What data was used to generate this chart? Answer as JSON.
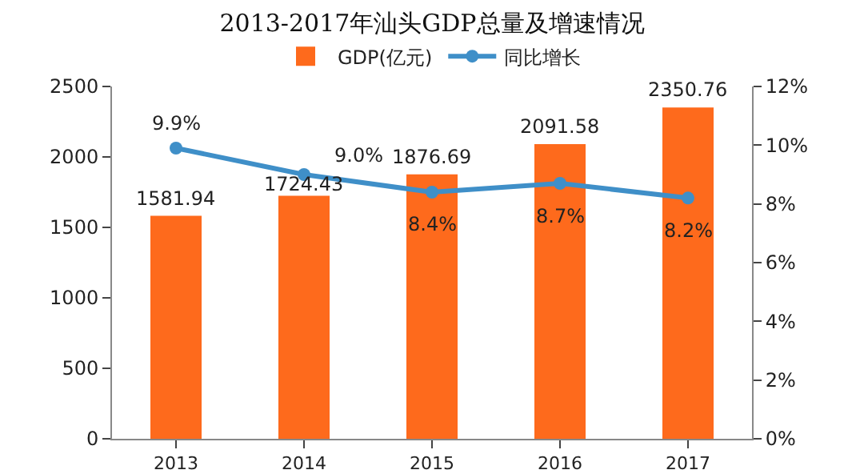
{
  "chart_data": {
    "type": "bar",
    "title": "2013-2017年汕头GDP总量及增速情况",
    "categories": [
      "2013",
      "2014",
      "2015",
      "2016",
      "2017"
    ],
    "series": [
      {
        "name": "GDP(亿元)",
        "color": "#fe6a1c",
        "values": [
          1581.94,
          1724.43,
          1876.69,
          2091.58,
          2350.76
        ],
        "value_labels": [
          "1581.94",
          "1724.43",
          "1876.69",
          "2091.58",
          "2350.76"
        ]
      },
      {
        "name": "同比增长",
        "type": "line",
        "axis": "y2",
        "color": "#3f8fc8",
        "values": [
          9.9,
          9.0,
          8.4,
          8.7,
          8.2
        ],
        "value_labels": [
          "9.9%",
          "9.0%",
          "8.4%",
          "8.7%",
          "8.2%"
        ]
      }
    ],
    "ylim": [
      0,
      2500
    ],
    "yticks": [
      0,
      500,
      1000,
      1500,
      2000,
      2500
    ],
    "y2lim": [
      0,
      12
    ],
    "y2ticks": [
      {
        "value": 0,
        "label": "0%"
      },
      {
        "value": 2,
        "label": "2%"
      },
      {
        "value": 4,
        "label": "4%"
      },
      {
        "value": 6,
        "label": "6%"
      },
      {
        "value": 8,
        "label": "8%"
      },
      {
        "value": 10,
        "label": "10%"
      },
      {
        "value": 12,
        "label": "12%"
      }
    ],
    "legend": "top",
    "marker": "circle",
    "grid": false
  }
}
